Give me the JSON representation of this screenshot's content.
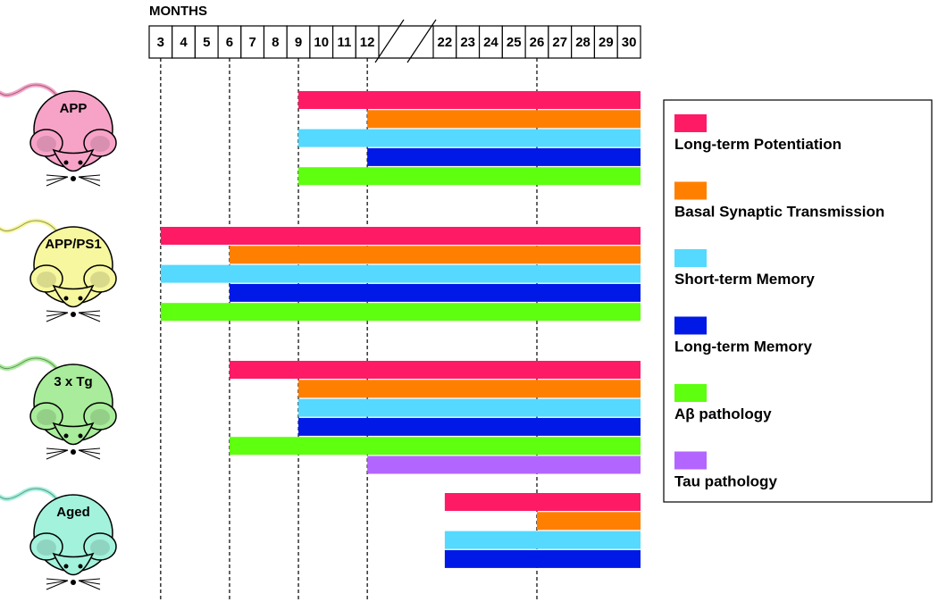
{
  "header": {
    "title": "MONTHS"
  },
  "months": [
    3,
    4,
    5,
    6,
    7,
    8,
    9,
    10,
    11,
    12,
    22,
    23,
    24,
    25,
    26,
    27,
    28,
    29,
    30
  ],
  "guides": [
    3,
    6,
    9,
    12,
    26
  ],
  "legend": [
    {
      "label": "Long-term Potentiation",
      "color": "#ff1a66"
    },
    {
      "label": "Basal Synaptic Transmission",
      "color": "#ff8000"
    },
    {
      "label": "Short-term Memory",
      "color": "#55d9ff"
    },
    {
      "label": "Long-term Memory",
      "color": "#0019e6"
    },
    {
      "label": "Aβ pathology",
      "color": "#5eff0f"
    },
    {
      "label": "Tau pathology",
      "color": "#b366ff"
    }
  ],
  "mice": [
    {
      "label": "APP",
      "color": "#f7a3c8",
      "onset": [
        9,
        12,
        9,
        12,
        9,
        null
      ]
    },
    {
      "label": "APP/PS1",
      "color": "#f6f79e",
      "onset": [
        3,
        6,
        3,
        6,
        3,
        null
      ]
    },
    {
      "label": "3 x Tg",
      "color": "#a9ec9b",
      "onset": [
        6,
        9,
        9,
        9,
        6,
        12
      ]
    },
    {
      "label": "Aged",
      "color": "#a3f2dc",
      "onset": [
        22,
        26,
        22,
        22,
        null,
        null
      ]
    }
  ]
}
